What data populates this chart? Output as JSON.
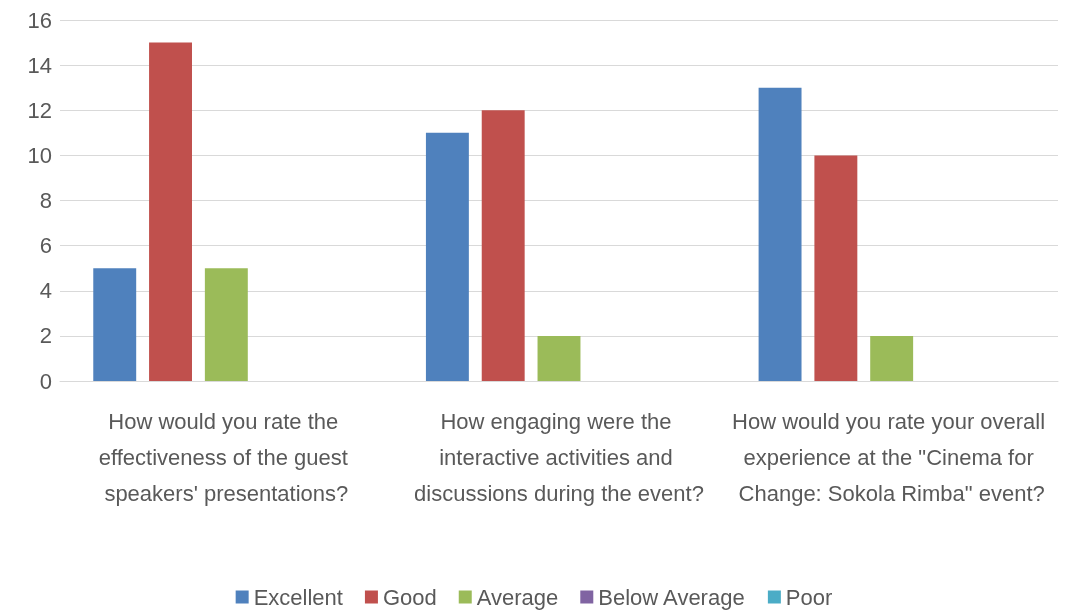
{
  "chart_data": {
    "type": "bar",
    "categories": [
      "How would you rate the effectiveness of the guest speakers' presentations?",
      "How engaging were the interactive activities and discussions during the event?",
      "How would you rate your overall experience at the \"Cinema for Change: Sokola Rimba\" event?"
    ],
    "series": [
      {
        "name": "Excellent",
        "color": "#4f81bd",
        "values": [
          5,
          11,
          13
        ]
      },
      {
        "name": "Good",
        "color": "#c0504d",
        "values": [
          15,
          12,
          10
        ]
      },
      {
        "name": "Average",
        "color": "#9bbb59",
        "values": [
          5,
          2,
          2
        ]
      },
      {
        "name": "Below Average",
        "color": "#8064a2",
        "values": [
          0,
          0,
          0
        ]
      },
      {
        "name": "Poor",
        "color": "#4bacc6",
        "values": [
          0,
          0,
          0
        ]
      }
    ],
    "ylim": [
      0,
      16
    ],
    "yticks": [
      0,
      2,
      4,
      6,
      8,
      10,
      12,
      14,
      16
    ],
    "grid": "y",
    "legend": "bottom"
  }
}
